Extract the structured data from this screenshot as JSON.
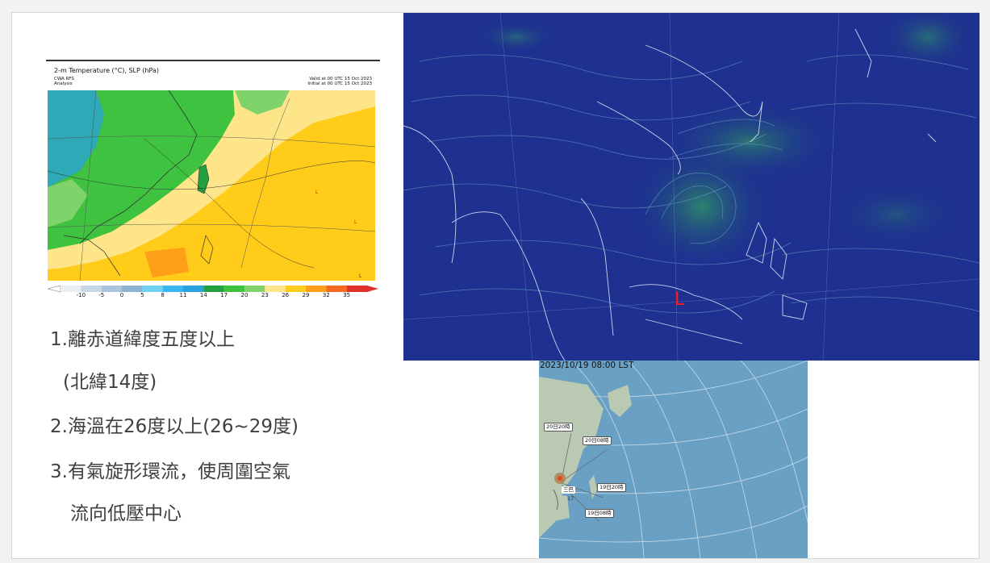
{
  "temp_map": {
    "title": "2-m Temperature (°C), SLP (hPa)",
    "model": "CWA RFS\nAnalysis",
    "valid": "Valid at 00 UTC 15 Oct 2023\nInitial at 00 UTC 15 Oct 2023",
    "colorbar_ticks": [
      "-10",
      "-5",
      "0",
      "5",
      "8",
      "11",
      "14",
      "17",
      "20",
      "23",
      "26",
      "29",
      "32",
      "35"
    ],
    "colorbar_colors": [
      "#e9eef3",
      "#c9d8e6",
      "#a9c4db",
      "#8eb4d3",
      "#6fd0f0",
      "#3ab6f0",
      "#27a3e0",
      "#23a040",
      "#3ec23f",
      "#7fd36a",
      "#ffe58a",
      "#ffcc19",
      "#ff9e18",
      "#f26b21",
      "#e0302b"
    ]
  },
  "bullets": {
    "line1": "1.離赤道緯度五度以上",
    "line2": "(北緯14度)",
    "line3": "2.海溫在26度以上(26~29度)",
    "line4": "3.有氣旋形環流，使周圍空氣",
    "line5": "流向低壓中心"
  },
  "wind_map": {
    "low_marker": "L",
    "low_color": "#ff1a1a",
    "ocean_color": "#1a2c8a"
  },
  "track_map": {
    "timestamp": "2023/10/19 08:00 LST",
    "labels": [
      "20日20時",
      "20日08時",
      "19日20時",
      "19日08時"
    ],
    "storm_name": "三巴",
    "storm_number": "17"
  }
}
